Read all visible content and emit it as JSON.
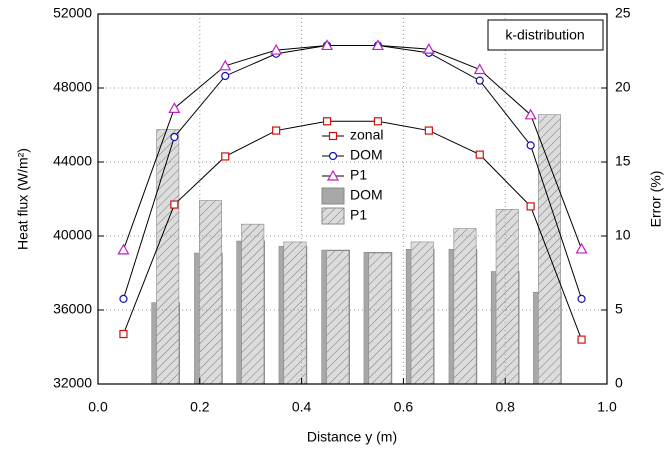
{
  "chart_data": {
    "type": "line",
    "xlabel": "Distance y (m)",
    "ylabel": "Heat flux (W/m²)",
    "y2label": "Error (%)",
    "annotation": "k-distribution",
    "xlim": [
      0,
      1
    ],
    "xticks": [
      {
        "value": 0,
        "label": "0.0"
      },
      0.2,
      0.4,
      0.6,
      0.8,
      {
        "value": 1,
        "label": "1.0"
      }
    ],
    "ylim": [
      32000,
      52000
    ],
    "yticks": [
      32000,
      36000,
      40000,
      44000,
      48000,
      52000
    ],
    "y2lim": [
      0,
      25
    ],
    "y2ticks": [
      0,
      5,
      10,
      15,
      20,
      25
    ],
    "grid": true,
    "series": [
      {
        "name": "zonal",
        "type": "line",
        "marker": "square",
        "color": "#d01010",
        "x": [
          0.05,
          0.15,
          0.25,
          0.35,
          0.45,
          0.55,
          0.65,
          0.75,
          0.85,
          0.95
        ],
        "values": [
          34700,
          41700,
          44300,
          45700,
          46200,
          46200,
          45700,
          44400,
          41600,
          34400
        ]
      },
      {
        "name": "DOM",
        "type": "line",
        "marker": "circle",
        "color": "#1010b0",
        "x": [
          0.05,
          0.15,
          0.25,
          0.35,
          0.45,
          0.55,
          0.65,
          0.75,
          0.85,
          0.95
        ],
        "values": [
          36600,
          45350,
          48650,
          49850,
          50300,
          50300,
          49900,
          48400,
          44900,
          36600
        ]
      },
      {
        "name": "P1",
        "type": "line",
        "marker": "triangle",
        "color": "#c020c0",
        "x": [
          0.05,
          0.15,
          0.25,
          0.35,
          0.45,
          0.55,
          0.65,
          0.75,
          0.85,
          0.95
        ],
        "values": [
          39250,
          46900,
          49200,
          50050,
          50300,
          50300,
          50100,
          49000,
          46550,
          39300
        ]
      },
      {
        "name": "DOM",
        "type": "bar",
        "axis": "y2",
        "color": "#a8a8a8",
        "x": [
          0.133,
          0.217,
          0.3,
          0.383,
          0.467,
          0.55,
          0.633,
          0.717,
          0.8,
          0.883
        ],
        "values": [
          5.5,
          8.85,
          9.66,
          9.3,
          9.05,
          8.9,
          9.1,
          9.1,
          7.6,
          6.2
        ]
      },
      {
        "name": "P1",
        "type": "bar",
        "axis": "y2",
        "color": "#dcdcdc",
        "hatch": true,
        "x": [
          0.133,
          0.217,
          0.3,
          0.383,
          0.467,
          0.55,
          0.633,
          0.717,
          0.8,
          0.883
        ],
        "values": [
          17.2,
          12.4,
          10.8,
          9.6,
          9.0,
          8.85,
          9.6,
          10.5,
          11.8,
          18.2
        ]
      }
    ]
  }
}
